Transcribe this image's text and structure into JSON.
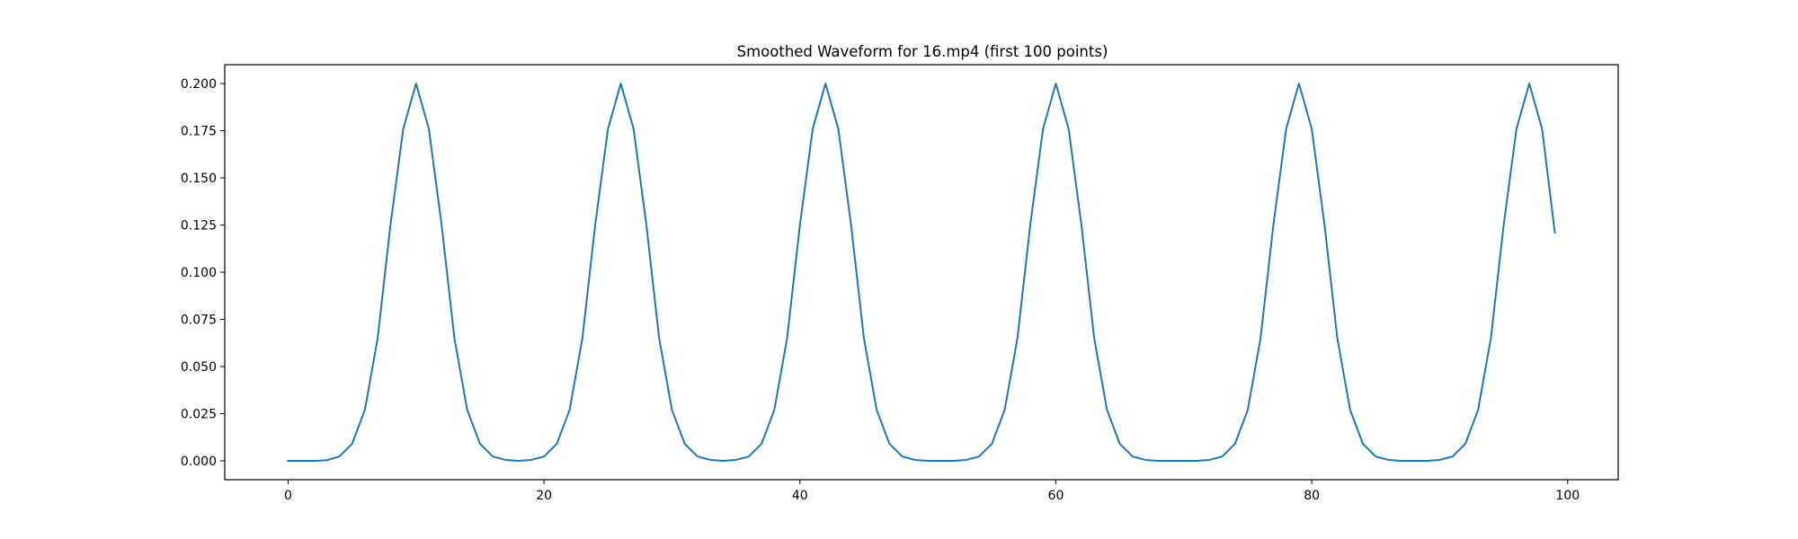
{
  "chart_data": {
    "type": "line",
    "title": "Smoothed Waveform for 16.mp4 (first 100 points)",
    "xlabel": "",
    "ylabel": "",
    "xlim": [
      -4.95,
      103.95
    ],
    "ylim": [
      -0.01,
      0.21
    ],
    "x_ticks": [
      0,
      20,
      40,
      60,
      80,
      100
    ],
    "y_ticks": [
      0.0,
      0.025,
      0.05,
      0.075,
      0.1,
      0.125,
      0.15,
      0.175,
      0.2
    ],
    "x_tick_labels": [
      "0",
      "20",
      "40",
      "60",
      "80",
      "100"
    ],
    "y_tick_labels": [
      "0.000",
      "0.025",
      "0.050",
      "0.075",
      "0.100",
      "0.125",
      "0.150",
      "0.175",
      "0.200"
    ],
    "grid": false,
    "legend": "none",
    "line_color": "#1f77b4",
    "series": [
      {
        "values": [
          0.0,
          0.0,
          0.0,
          0.0003,
          0.0023,
          0.009,
          0.027,
          0.065,
          0.125,
          0.176,
          0.2,
          0.176,
          0.125,
          0.065,
          0.027,
          0.009,
          0.0023,
          0.0005,
          0.0,
          0.0005,
          0.0023,
          0.009,
          0.027,
          0.065,
          0.125,
          0.176,
          0.2,
          0.176,
          0.125,
          0.065,
          0.027,
          0.009,
          0.0023,
          0.0005,
          0.0,
          0.0005,
          0.0023,
          0.009,
          0.027,
          0.065,
          0.125,
          0.176,
          0.2,
          0.176,
          0.125,
          0.065,
          0.027,
          0.009,
          0.0023,
          0.0005,
          0.0,
          0.0,
          0.0,
          0.0005,
          0.0023,
          0.009,
          0.027,
          0.065,
          0.125,
          0.176,
          0.2,
          0.176,
          0.125,
          0.065,
          0.027,
          0.009,
          0.0023,
          0.0005,
          0.0,
          0.0,
          0.0,
          0.0,
          0.0005,
          0.0023,
          0.009,
          0.027,
          0.065,
          0.125,
          0.176,
          0.2,
          0.176,
          0.125,
          0.065,
          0.027,
          0.009,
          0.0023,
          0.0005,
          0.0,
          0.0,
          0.0,
          0.0005,
          0.0023,
          0.009,
          0.027,
          0.065,
          0.125,
          0.176,
          0.2,
          0.176,
          0.121
        ]
      }
    ]
  }
}
